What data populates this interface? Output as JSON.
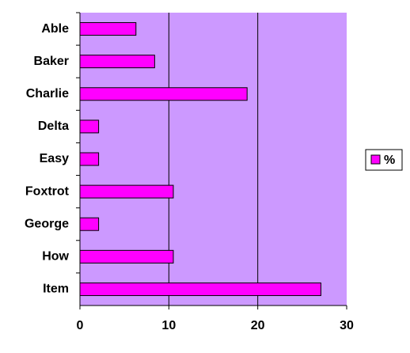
{
  "chart_data": {
    "type": "bar",
    "orientation": "horizontal",
    "categories": [
      "Able",
      "Baker",
      "Charlie",
      "Delta",
      "Easy",
      "Foxtrot",
      "George",
      "How",
      "Item"
    ],
    "series": [
      {
        "name": "%",
        "color": "#ff00ff",
        "values": [
          6.3,
          8.4,
          18.8,
          2.1,
          2.1,
          10.5,
          2.1,
          10.5,
          27.1
        ]
      }
    ],
    "xlim": [
      0,
      30
    ],
    "xticks": [
      0,
      10,
      20,
      30
    ],
    "grid": true,
    "legend": "right",
    "background": "#cc99ff"
  }
}
